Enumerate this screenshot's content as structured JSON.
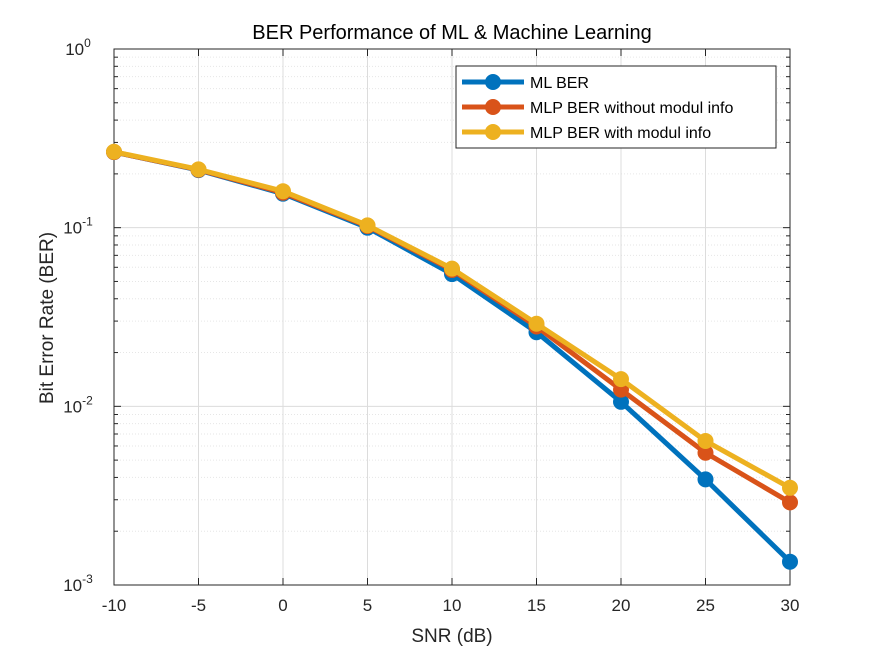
{
  "chart_data": {
    "type": "line",
    "title": "BER Performance of ML & Machine Learning",
    "xlabel": "SNR (dB)",
    "ylabel": "Bit Error Rate (BER)",
    "xlim": [
      -10,
      30
    ],
    "ylim": [
      0.001,
      1
    ],
    "yscale": "log",
    "grid": true,
    "legend_position": "top-right",
    "x": [
      -10,
      -5,
      0,
      5,
      10,
      15,
      20,
      25,
      30
    ],
    "x_tick_labels": [
      "-10",
      "-5",
      "0",
      "5",
      "10",
      "15",
      "20",
      "25",
      "30"
    ],
    "y_tick_labels": [
      {
        "base": "10",
        "exp": "0"
      },
      {
        "base": "10",
        "exp": "-1"
      },
      {
        "base": "10",
        "exp": "-2"
      },
      {
        "base": "10",
        "exp": "-3"
      }
    ],
    "series": [
      {
        "name": "ML BER",
        "color": "#0072BD",
        "values": [
          0.265,
          0.21,
          0.155,
          0.1,
          0.055,
          0.026,
          0.0106,
          0.0039,
          0.00135
        ]
      },
      {
        "name": "MLP BER without modul info",
        "color": "#D95319",
        "values": [
          0.265,
          0.211,
          0.157,
          0.102,
          0.058,
          0.028,
          0.0124,
          0.0055,
          0.0029
        ]
      },
      {
        "name": "MLP BER with modul info",
        "color": "#EDB120",
        "values": [
          0.266,
          0.212,
          0.16,
          0.103,
          0.059,
          0.029,
          0.0142,
          0.0064,
          0.0035
        ]
      }
    ]
  }
}
